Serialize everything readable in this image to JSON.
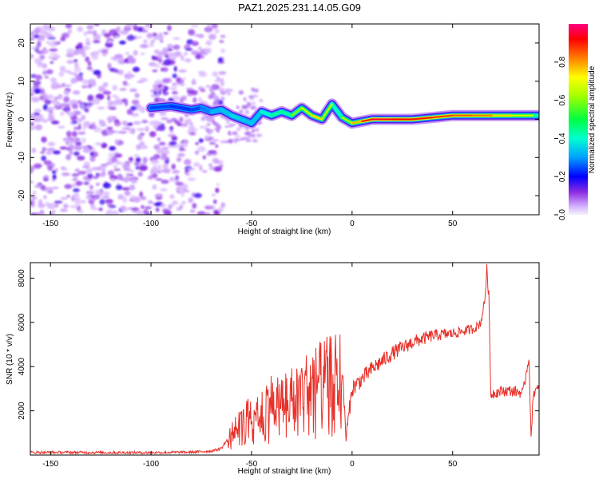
{
  "title": "PAZ1.2025.231.14.05.G09",
  "chart_data": [
    {
      "type": "heatmap",
      "xlabel": "Height of straight line (km)",
      "ylabel": "Frequency (Hz)",
      "xlim": [
        -160,
        93
      ],
      "ylim": [
        -25,
        25
      ],
      "xticks": [
        -150,
        -100,
        -50,
        0,
        50
      ],
      "yticks": [
        -20,
        -10,
        0,
        10,
        20
      ],
      "noise_region_x": [
        -160,
        -70
      ],
      "ridge": {
        "x": [
          -100,
          -90,
          -85,
          -80,
          -75,
          -70,
          -65,
          -60,
          -55,
          -50,
          -45,
          -40,
          -35,
          -30,
          -25,
          -20,
          -15,
          -10,
          -5,
          0,
          5,
          10,
          20,
          30,
          40,
          50,
          60,
          70,
          80,
          90,
          92
        ],
        "freq": [
          3,
          3.5,
          3,
          2.5,
          3,
          2,
          2.5,
          1,
          0,
          -1,
          2,
          1,
          2,
          1,
          3,
          1,
          0,
          4,
          0.5,
          -1,
          -0.5,
          0,
          0,
          0,
          0.5,
          1,
          1,
          1,
          1,
          1,
          1
        ],
        "value": [
          0.35,
          0.3,
          0.32,
          0.3,
          0.35,
          0.4,
          0.45,
          0.45,
          0.5,
          0.4,
          0.5,
          0.55,
          0.6,
          0.55,
          0.65,
          0.7,
          0.8,
          0.5,
          0.6,
          0.7,
          0.85,
          0.95,
          0.95,
          0.9,
          0.9,
          0.85,
          0.85,
          0.8,
          0.7,
          0.65,
          0.5
        ]
      },
      "colorbar": {
        "label": "Normalized spectral amplitude",
        "range": [
          0,
          1
        ],
        "ticks": [
          "0.0",
          "0.2",
          "0.4",
          "0.6",
          "0.8"
        ]
      }
    },
    {
      "type": "line",
      "xlabel": "Height of straight line (km)",
      "ylabel": "SNR (10 * v/v)",
      "xlim": [
        -160,
        93
      ],
      "ylim": [
        0,
        8700
      ],
      "xticks": [
        -150,
        -100,
        -50,
        0,
        50
      ],
      "yticks": [
        2000,
        4000,
        6000,
        8000
      ],
      "color": "#e8312a",
      "series": [
        {
          "name": "SNR",
          "x": [
            -160,
            -140,
            -120,
            -100,
            -90,
            -80,
            -70,
            -65,
            -60,
            -55,
            -50,
            -45,
            -40,
            -35,
            -30,
            -25,
            -20,
            -15,
            -10,
            -5,
            -3,
            0,
            10,
            20,
            30,
            40,
            50,
            55,
            60,
            62,
            64,
            66,
            67,
            68,
            69,
            70,
            75,
            80,
            85,
            88,
            89,
            90,
            93
          ],
          "y": [
            120,
            120,
            110,
            110,
            120,
            130,
            180,
            300,
            1000,
            1500,
            2000,
            2300,
            2600,
            2600,
            2800,
            3100,
            3400,
            3600,
            3800,
            4000,
            800,
            3000,
            3900,
            4600,
            5100,
            5400,
            5500,
            5600,
            5700,
            5800,
            6000,
            7000,
            8400,
            7200,
            2700,
            2800,
            2900,
            2900,
            2800,
            4500,
            600,
            2800,
            3000
          ]
        }
      ]
    }
  ]
}
